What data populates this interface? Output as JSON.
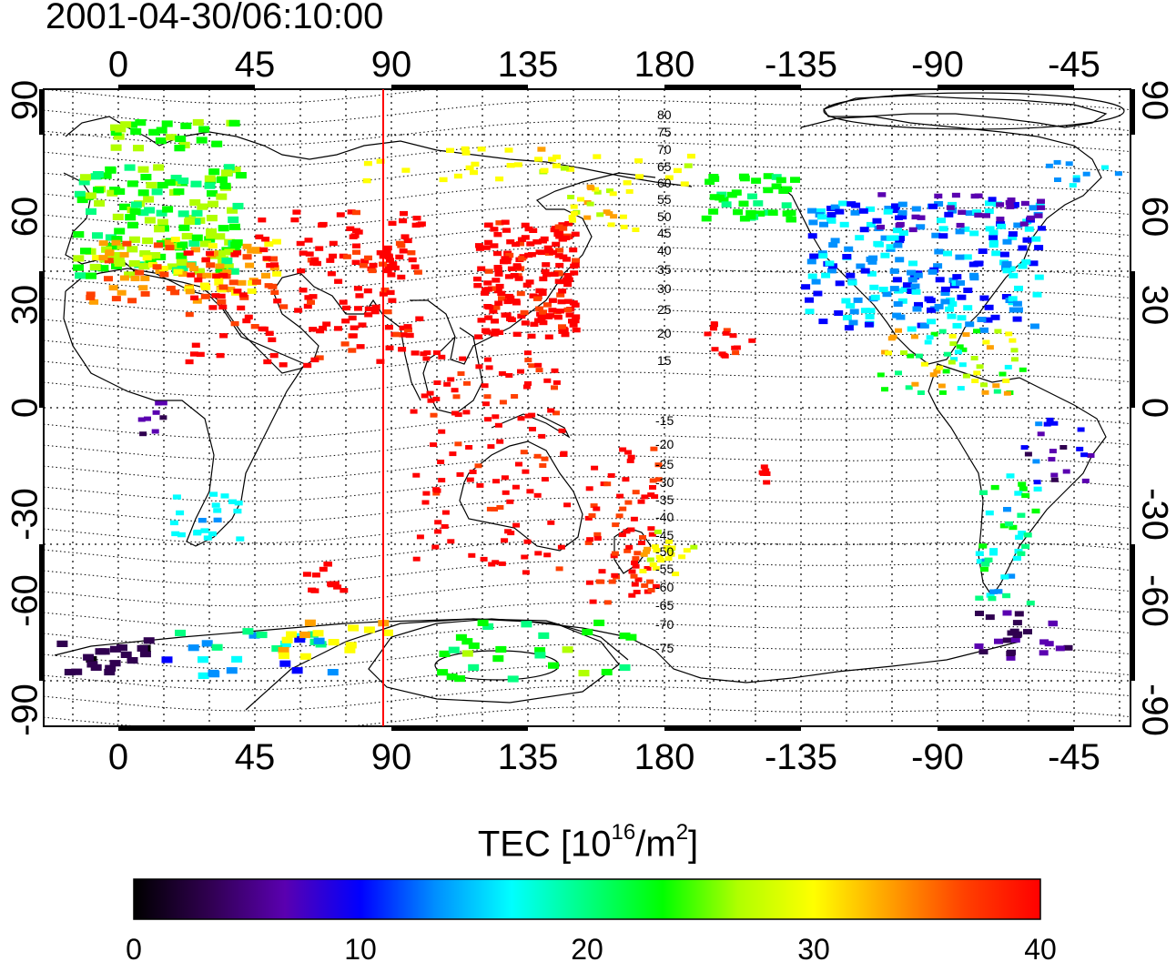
{
  "header": {
    "timestamp": "2001-04-30/06:10:00"
  },
  "colorbar": {
    "title_main": "TEC  [10",
    "title_exp1": "16",
    "title_mid": "/m",
    "title_exp2": "2",
    "title_end": "]",
    "ticks": [
      "0",
      "10",
      "20",
      "30",
      "40"
    ],
    "stops": [
      "#000000",
      "#300050",
      "#5a00b0",
      "#0000ff",
      "#0090ff",
      "#00ffff",
      "#00ff80",
      "#00ff00",
      "#b0ff00",
      "#ffff00",
      "#ffa000",
      "#ff4000",
      "#ff0000"
    ]
  },
  "map": {
    "lon_ticks": [
      "0",
      "45",
      "90",
      "135",
      "180",
      "-135",
      "-90",
      "-45"
    ],
    "lat_ticks": [
      "90",
      "60",
      "30",
      "0",
      "-30",
      "-60",
      "-90"
    ],
    "magnetic_lat_labels_north": [
      "80",
      "75",
      "70",
      "65",
      "60",
      "55",
      "50",
      "45",
      "40",
      "35",
      "30",
      "25",
      "20",
      "15"
    ],
    "magnetic_lat_labels_south": [
      "-15",
      "-20",
      "-25",
      "-30",
      "-35",
      "-40",
      "-45",
      "-50",
      "-55",
      "-60",
      "-65",
      "-70",
      "-75"
    ],
    "subsolar_meridian_lon": 87,
    "subsolar_line_color": "#ff0000"
  }
}
